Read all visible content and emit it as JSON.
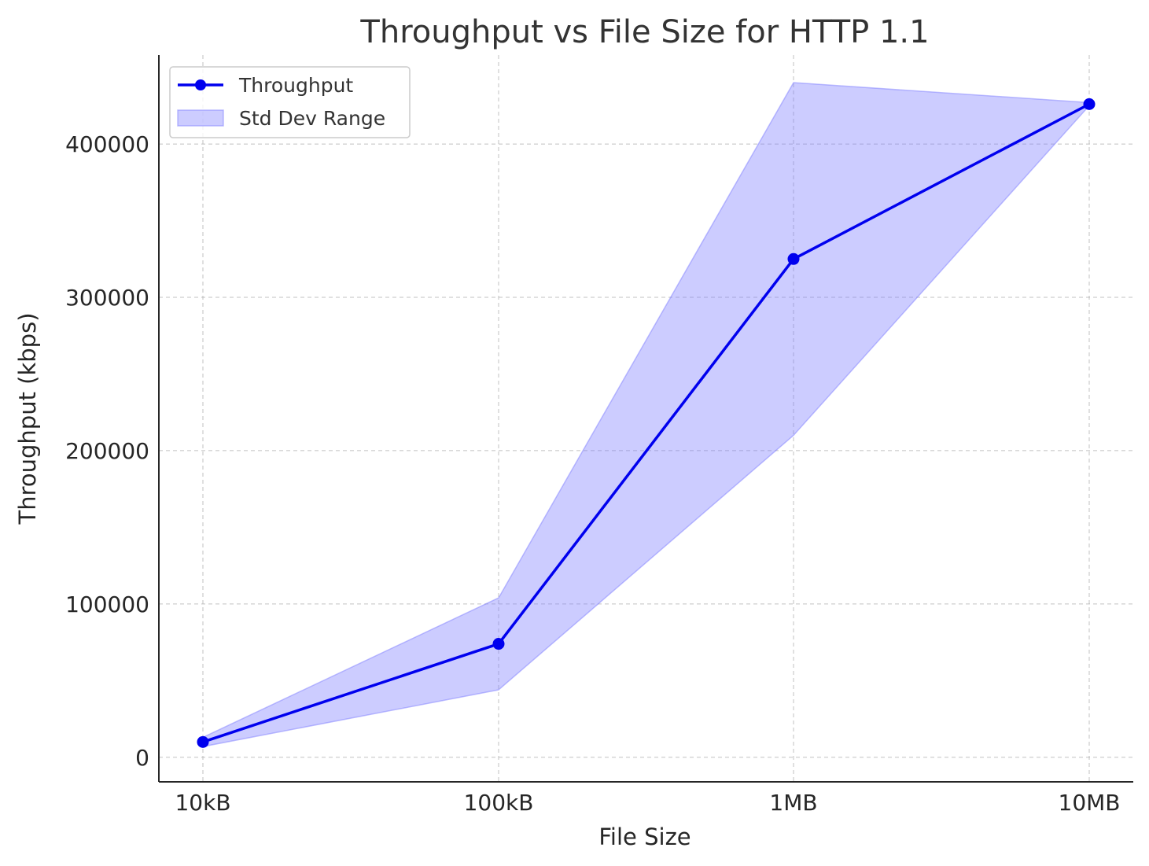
{
  "chart_data": {
    "type": "line",
    "title": "Throughput vs File Size for HTTP 1.1",
    "xlabel": "File Size",
    "ylabel": "Throughput (kbps)",
    "categories": [
      "10kB",
      "100kB",
      "1MB",
      "10MB"
    ],
    "ylim": [
      -16000,
      458000
    ],
    "yticks": [
      0,
      100000,
      200000,
      300000,
      400000
    ],
    "ytick_labels": [
      "0",
      "100000",
      "200000",
      "300000",
      "400000"
    ],
    "series": [
      {
        "name": "Throughput",
        "type": "line",
        "marker": "circle",
        "color": "#0000ee",
        "values": [
          10000,
          74000,
          325000,
          426000
        ]
      }
    ],
    "band": {
      "name": "Std Dev Range",
      "type": "area",
      "color": "#8080ff",
      "upper": [
        13000,
        104000,
        440000,
        427000
      ],
      "lower": [
        7000,
        44000,
        210000,
        425000
      ]
    },
    "grid": true,
    "legend_position": "top-left"
  }
}
